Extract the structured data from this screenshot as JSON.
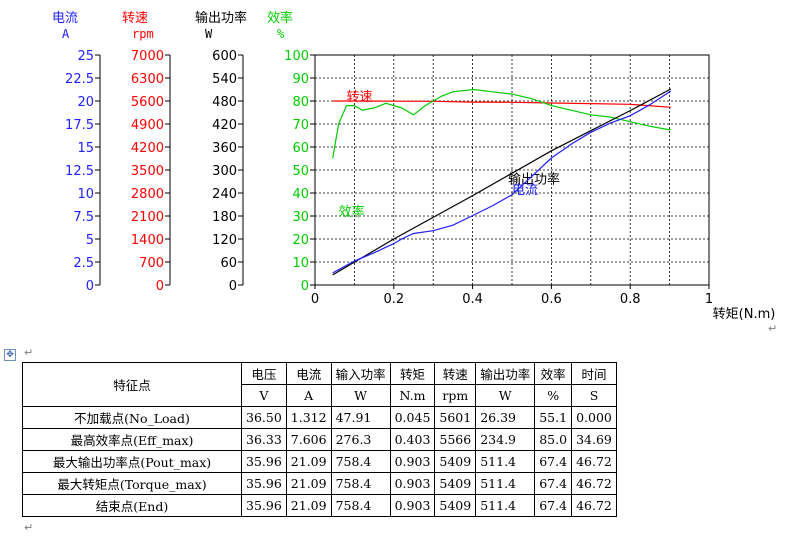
{
  "chart_data": {
    "type": "line",
    "xlabel": "转矩(N.m)",
    "xticks": [
      "0",
      "0.2",
      "0.4",
      "0.6",
      "0.8",
      "1"
    ],
    "xlim": [
      0,
      1
    ],
    "grid": true,
    "axes": [
      {
        "name": "电流",
        "unit": "A",
        "color": "#1f1fff",
        "ylim": [
          0,
          25
        ],
        "ticks": [
          "0",
          "2.5",
          "5",
          "7.5",
          "10",
          "12.5",
          "15",
          "17.5",
          "20",
          "22.5",
          "25"
        ]
      },
      {
        "name": "转速",
        "unit": "rpm",
        "color": "#ff0000",
        "ylim": [
          0,
          7000
        ],
        "ticks": [
          "0",
          "700",
          "1400",
          "2100",
          "2800",
          "3500",
          "4200",
          "4900",
          "5600",
          "6300",
          "7000"
        ]
      },
      {
        "name": "输出功率",
        "unit": "W",
        "color": "#000000",
        "ylim": [
          0,
          600
        ],
        "ticks": [
          "0",
          "60",
          "120",
          "180",
          "240",
          "300",
          "360",
          "420",
          "480",
          "540",
          "600"
        ]
      },
      {
        "name": "效率",
        "unit": "%",
        "color": "#00cc00",
        "ylim": [
          0,
          100
        ],
        "ticks": [
          "0",
          "10",
          "20",
          "30",
          "40",
          "50",
          "60",
          "70",
          "80",
          "90",
          "100"
        ]
      }
    ],
    "series": [
      {
        "name": "转速",
        "axis": 1,
        "color": "#ff0000",
        "label_at": [
          0.08,
          5600
        ],
        "points": [
          [
            0.045,
            5601
          ],
          [
            0.1,
            5600
          ],
          [
            0.2,
            5595
          ],
          [
            0.3,
            5590
          ],
          [
            0.4,
            5566
          ],
          [
            0.5,
            5560
          ],
          [
            0.6,
            5540
          ],
          [
            0.7,
            5520
          ],
          [
            0.8,
            5500
          ],
          [
            0.903,
            5409
          ]
        ]
      },
      {
        "name": "效率",
        "axis": 3,
        "color": "#00cc00",
        "label_at": [
          0.06,
          30
        ],
        "points": [
          [
            0.045,
            55.1
          ],
          [
            0.06,
            70
          ],
          [
            0.08,
            78
          ],
          [
            0.1,
            78
          ],
          [
            0.12,
            76
          ],
          [
            0.15,
            77
          ],
          [
            0.18,
            79
          ],
          [
            0.22,
            77
          ],
          [
            0.25,
            74
          ],
          [
            0.28,
            78
          ],
          [
            0.32,
            82
          ],
          [
            0.35,
            84
          ],
          [
            0.403,
            85.0
          ],
          [
            0.45,
            84
          ],
          [
            0.5,
            83
          ],
          [
            0.55,
            81
          ],
          [
            0.6,
            78
          ],
          [
            0.65,
            76
          ],
          [
            0.7,
            74
          ],
          [
            0.75,
            73
          ],
          [
            0.8,
            71
          ],
          [
            0.85,
            69
          ],
          [
            0.903,
            67.4
          ]
        ]
      },
      {
        "name": "输出功率",
        "axis": 2,
        "color": "#000000",
        "label_at": [
          0.49,
          265
        ],
        "points": [
          [
            0.045,
            26.39
          ],
          [
            0.2,
            120
          ],
          [
            0.403,
            234.9
          ],
          [
            0.6,
            350
          ],
          [
            0.8,
            455
          ],
          [
            0.903,
            511.4
          ]
        ]
      },
      {
        "name": "电流",
        "axis": 0,
        "color": "#1f1fff",
        "label_at": [
          0.5,
          9.9
        ],
        "points": [
          [
            0.045,
            1.312
          ],
          [
            0.1,
            2.6
          ],
          [
            0.15,
            3.5
          ],
          [
            0.2,
            4.5
          ],
          [
            0.22,
            5.0
          ],
          [
            0.25,
            5.6
          ],
          [
            0.3,
            5.9
          ],
          [
            0.35,
            6.5
          ],
          [
            0.403,
            7.606
          ],
          [
            0.45,
            8.6
          ],
          [
            0.5,
            9.8
          ],
          [
            0.55,
            11.8
          ],
          [
            0.6,
            13.8
          ],
          [
            0.65,
            15.3
          ],
          [
            0.7,
            16.6
          ],
          [
            0.75,
            17.6
          ],
          [
            0.8,
            18.4
          ],
          [
            0.85,
            19.6
          ],
          [
            0.903,
            21.09
          ]
        ]
      }
    ]
  },
  "table": {
    "corner": "特征点",
    "headers": [
      "电压",
      "电流",
      "输入功率",
      "转矩",
      "转速",
      "输出功率",
      "效率",
      "时间"
    ],
    "units": [
      "V",
      "A",
      "W",
      "N.m",
      "rpm",
      "W",
      "%",
      "S"
    ],
    "rows": [
      {
        "label": "不加载点(No_Load)",
        "cells": [
          "36.50",
          "1.312",
          "47.91",
          "0.045",
          "5601",
          "26.39",
          "55.1",
          "0.000"
        ]
      },
      {
        "label": "最高效率点(Eff_max)",
        "cells": [
          "36.33",
          "7.606",
          "276.3",
          "0.403",
          "5566",
          "234.9",
          "85.0",
          "34.69"
        ]
      },
      {
        "label": "最大输出功率点(Pout_max)",
        "cells": [
          "35.96",
          "21.09",
          "758.4",
          "0.903",
          "5409",
          "511.4",
          "67.4",
          "46.72"
        ]
      },
      {
        "label": "最大转矩点(Torque_max)",
        "cells": [
          "35.96",
          "21.09",
          "758.4",
          "0.903",
          "5409",
          "511.4",
          "67.4",
          "46.72"
        ]
      },
      {
        "label": "结束点(End)",
        "cells": [
          "35.96",
          "21.09",
          "758.4",
          "0.903",
          "5409",
          "511.4",
          "67.4",
          "46.72"
        ]
      }
    ]
  }
}
